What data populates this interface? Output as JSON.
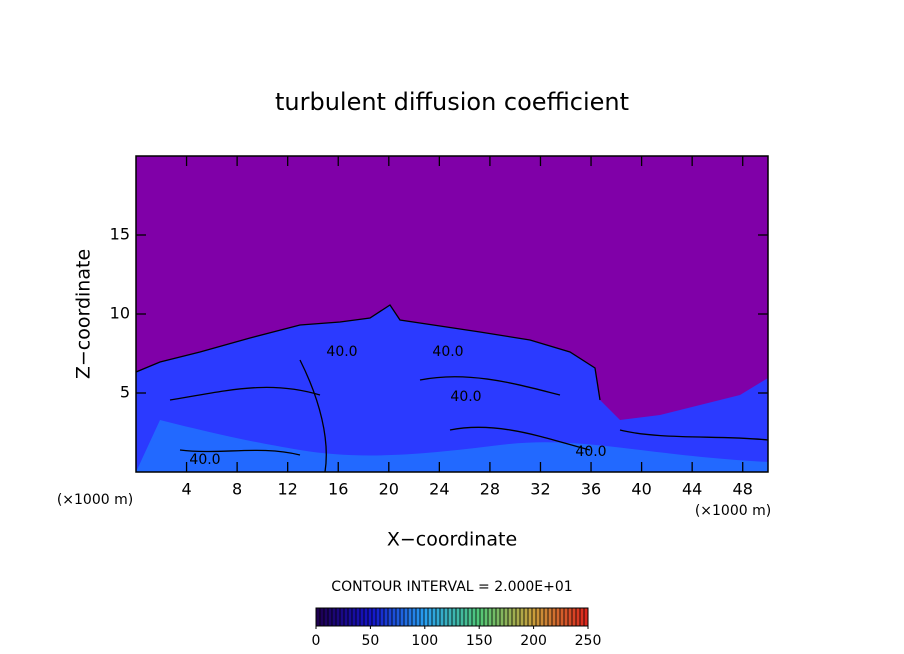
{
  "chart_data": {
    "type": "contour",
    "title": "turbulent diffusion coefficient",
    "x_label": "X−coordinate",
    "y_label": "Z−coordinate",
    "x_unit": "(×1000 m)",
    "y_unit": "(×1000 m)",
    "xlim": [
      0,
      50
    ],
    "xticks": [
      4,
      8,
      12,
      16,
      20,
      24,
      28,
      32,
      36,
      40,
      44,
      48
    ],
    "ylim": [
      0,
      20
    ],
    "yticks": [
      5,
      10,
      15
    ],
    "contour_labels": [
      "40.0",
      "40.0",
      "40.0",
      "40.0",
      "40.0"
    ],
    "contour_interval": "CONTOUR INTERVAL = 2.000E+01",
    "colorbar": {
      "lim": [
        0,
        250
      ],
      "ticks": [
        0,
        50,
        100,
        150,
        200,
        250
      ]
    }
  }
}
